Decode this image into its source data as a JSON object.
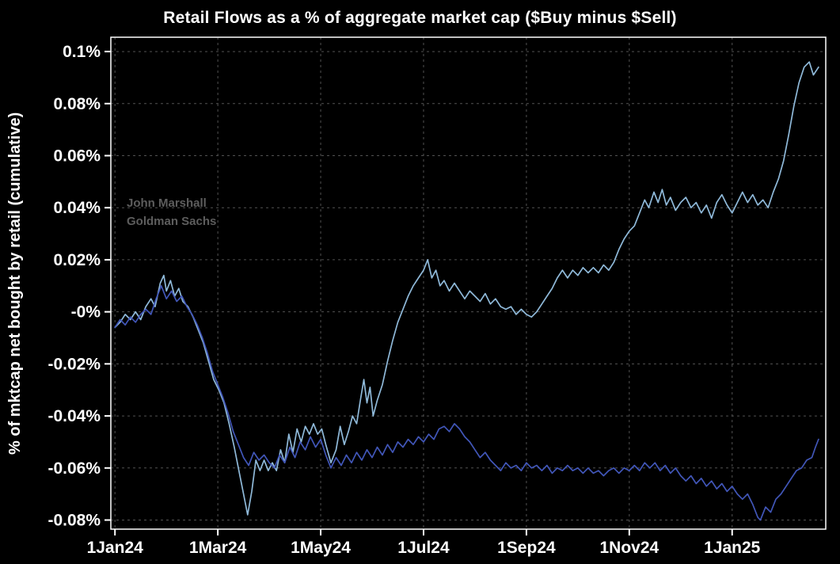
{
  "chart_data": {
    "type": "line",
    "title": "Retail Flows as a % of aggregate market cap ($Buy minus $Sell)",
    "xlabel": "",
    "ylabel": "% of mktcap net bought by retail (cumulative)",
    "watermark_line1": "John Marshall",
    "watermark_line2": "Goldman Sachs",
    "grid": true,
    "legend": "none",
    "x_unit": "months since 1Jan24",
    "y_unit": "percent of aggregate market cap",
    "xlim": [
      -0.08,
      13.82
    ],
    "ylim": [
      -0.0835,
      0.1055
    ],
    "x_ticks": [
      {
        "pos": 0,
        "label": "1Jan24"
      },
      {
        "pos": 2,
        "label": "1Mar24"
      },
      {
        "pos": 4,
        "label": "1May24"
      },
      {
        "pos": 6,
        "label": "1Jul24"
      },
      {
        "pos": 8,
        "label": "1Sep24"
      },
      {
        "pos": 10,
        "label": "1Nov24"
      },
      {
        "pos": 12,
        "label": "1Jan25"
      }
    ],
    "y_ticks": [
      {
        "pos": 0.1,
        "label": "0.1%"
      },
      {
        "pos": 0.08,
        "label": "0.08%"
      },
      {
        "pos": 0.06,
        "label": "0.06%"
      },
      {
        "pos": 0.04,
        "label": "0.04%"
      },
      {
        "pos": 0.02,
        "label": "0.02%"
      },
      {
        "pos": 0,
        "label": "-0%"
      },
      {
        "pos": -0.02,
        "label": "-0.02%"
      },
      {
        "pos": -0.04,
        "label": "-0.04%"
      },
      {
        "pos": -0.06,
        "label": "-0.06%"
      },
      {
        "pos": -0.08,
        "label": "-0.08%"
      }
    ],
    "colors": {
      "background": "#000000",
      "text": "#ffffff",
      "grid": "#525252",
      "frame": "#ffffff",
      "watermark": "#5d5d5d"
    },
    "series": [
      {
        "name": "light-blue-line",
        "color": "#8fb9d9",
        "points": [
          [
            0.0,
            -0.006
          ],
          [
            0.1,
            -0.004
          ],
          [
            0.2,
            -0.001
          ],
          [
            0.3,
            -0.003
          ],
          [
            0.4,
            0.0
          ],
          [
            0.5,
            -0.003
          ],
          [
            0.6,
            0.002
          ],
          [
            0.7,
            0.005
          ],
          [
            0.78,
            0.002
          ],
          [
            0.88,
            0.011
          ],
          [
            0.95,
            0.014
          ],
          [
            1.0,
            0.008
          ],
          [
            1.08,
            0.012
          ],
          [
            1.16,
            0.006
          ],
          [
            1.24,
            0.009
          ],
          [
            1.32,
            0.004
          ],
          [
            1.42,
            0.002
          ],
          [
            1.52,
            -0.002
          ],
          [
            1.62,
            -0.007
          ],
          [
            1.72,
            -0.012
          ],
          [
            1.82,
            -0.019
          ],
          [
            1.92,
            -0.026
          ],
          [
            2.02,
            -0.03
          ],
          [
            2.12,
            -0.035
          ],
          [
            2.22,
            -0.043
          ],
          [
            2.32,
            -0.052
          ],
          [
            2.42,
            -0.062
          ],
          [
            2.5,
            -0.07
          ],
          [
            2.58,
            -0.078
          ],
          [
            2.66,
            -0.069
          ],
          [
            2.74,
            -0.057
          ],
          [
            2.82,
            -0.061
          ],
          [
            2.9,
            -0.057
          ],
          [
            2.98,
            -0.061
          ],
          [
            3.06,
            -0.058
          ],
          [
            3.14,
            -0.061
          ],
          [
            3.22,
            -0.053
          ],
          [
            3.3,
            -0.058
          ],
          [
            3.38,
            -0.047
          ],
          [
            3.46,
            -0.054
          ],
          [
            3.54,
            -0.045
          ],
          [
            3.62,
            -0.05
          ],
          [
            3.7,
            -0.044
          ],
          [
            3.78,
            -0.047
          ],
          [
            3.86,
            -0.043
          ],
          [
            3.94,
            -0.047
          ],
          [
            4.02,
            -0.045
          ],
          [
            4.1,
            -0.051
          ],
          [
            4.2,
            -0.058
          ],
          [
            4.3,
            -0.053
          ],
          [
            4.38,
            -0.044
          ],
          [
            4.46,
            -0.051
          ],
          [
            4.54,
            -0.046
          ],
          [
            4.62,
            -0.04
          ],
          [
            4.7,
            -0.043
          ],
          [
            4.78,
            -0.033
          ],
          [
            4.84,
            -0.026
          ],
          [
            4.9,
            -0.035
          ],
          [
            4.96,
            -0.029
          ],
          [
            5.02,
            -0.04
          ],
          [
            5.1,
            -0.034
          ],
          [
            5.2,
            -0.028
          ],
          [
            5.3,
            -0.019
          ],
          [
            5.4,
            -0.011
          ],
          [
            5.5,
            -0.004
          ],
          [
            5.6,
            0.001
          ],
          [
            5.7,
            0.006
          ],
          [
            5.8,
            0.01
          ],
          [
            5.9,
            0.013
          ],
          [
            6.0,
            0.016
          ],
          [
            6.08,
            0.02
          ],
          [
            6.16,
            0.013
          ],
          [
            6.24,
            0.016
          ],
          [
            6.32,
            0.01
          ],
          [
            6.4,
            0.012
          ],
          [
            6.5,
            0.008
          ],
          [
            6.6,
            0.011
          ],
          [
            6.7,
            0.008
          ],
          [
            6.8,
            0.005
          ],
          [
            6.9,
            0.008
          ],
          [
            7.0,
            0.006
          ],
          [
            7.1,
            0.004
          ],
          [
            7.2,
            0.007
          ],
          [
            7.3,
            0.003
          ],
          [
            7.4,
            0.005
          ],
          [
            7.5,
            0.002
          ],
          [
            7.6,
            0.001
          ],
          [
            7.7,
            0.002
          ],
          [
            7.8,
            -0.001
          ],
          [
            7.9,
            0.001
          ],
          [
            8.0,
            -0.001
          ],
          [
            8.1,
            -0.002
          ],
          [
            8.2,
            0.0
          ],
          [
            8.3,
            0.003
          ],
          [
            8.4,
            0.006
          ],
          [
            8.5,
            0.009
          ],
          [
            8.6,
            0.013
          ],
          [
            8.7,
            0.016
          ],
          [
            8.8,
            0.013
          ],
          [
            8.9,
            0.016
          ],
          [
            9.0,
            0.014
          ],
          [
            9.1,
            0.017
          ],
          [
            9.2,
            0.015
          ],
          [
            9.3,
            0.017
          ],
          [
            9.4,
            0.015
          ],
          [
            9.5,
            0.018
          ],
          [
            9.6,
            0.016
          ],
          [
            9.7,
            0.019
          ],
          [
            9.8,
            0.024
          ],
          [
            9.9,
            0.028
          ],
          [
            10.0,
            0.031
          ],
          [
            10.1,
            0.033
          ],
          [
            10.2,
            0.038
          ],
          [
            10.3,
            0.043
          ],
          [
            10.38,
            0.04
          ],
          [
            10.48,
            0.046
          ],
          [
            10.56,
            0.042
          ],
          [
            10.64,
            0.047
          ],
          [
            10.72,
            0.041
          ],
          [
            10.8,
            0.044
          ],
          [
            10.9,
            0.039
          ],
          [
            11.0,
            0.042
          ],
          [
            11.1,
            0.044
          ],
          [
            11.2,
            0.04
          ],
          [
            11.3,
            0.042
          ],
          [
            11.4,
            0.038
          ],
          [
            11.5,
            0.041
          ],
          [
            11.6,
            0.036
          ],
          [
            11.7,
            0.042
          ],
          [
            11.8,
            0.045
          ],
          [
            11.9,
            0.041
          ],
          [
            12.0,
            0.038
          ],
          [
            12.1,
            0.042
          ],
          [
            12.2,
            0.046
          ],
          [
            12.3,
            0.042
          ],
          [
            12.4,
            0.045
          ],
          [
            12.5,
            0.041
          ],
          [
            12.6,
            0.043
          ],
          [
            12.7,
            0.04
          ],
          [
            12.8,
            0.046
          ],
          [
            12.9,
            0.051
          ],
          [
            13.0,
            0.058
          ],
          [
            13.1,
            0.068
          ],
          [
            13.2,
            0.079
          ],
          [
            13.3,
            0.088
          ],
          [
            13.4,
            0.094
          ],
          [
            13.5,
            0.096
          ],
          [
            13.58,
            0.091
          ],
          [
            13.68,
            0.094
          ]
        ]
      },
      {
        "name": "dark-blue-line",
        "color": "#4156b8",
        "points": [
          [
            0.0,
            -0.006
          ],
          [
            0.1,
            -0.003
          ],
          [
            0.2,
            -0.005
          ],
          [
            0.3,
            -0.002
          ],
          [
            0.4,
            -0.004
          ],
          [
            0.5,
            -0.001
          ],
          [
            0.6,
            0.001
          ],
          [
            0.7,
            -0.001
          ],
          [
            0.8,
            0.005
          ],
          [
            0.9,
            0.01
          ],
          [
            1.0,
            0.005
          ],
          [
            1.1,
            0.008
          ],
          [
            1.2,
            0.004
          ],
          [
            1.3,
            0.006
          ],
          [
            1.4,
            0.002
          ],
          [
            1.5,
            -0.001
          ],
          [
            1.6,
            -0.005
          ],
          [
            1.7,
            -0.01
          ],
          [
            1.8,
            -0.016
          ],
          [
            1.9,
            -0.023
          ],
          [
            2.0,
            -0.028
          ],
          [
            2.1,
            -0.033
          ],
          [
            2.2,
            -0.039
          ],
          [
            2.3,
            -0.046
          ],
          [
            2.4,
            -0.051
          ],
          [
            2.5,
            -0.056
          ],
          [
            2.6,
            -0.059
          ],
          [
            2.7,
            -0.054
          ],
          [
            2.8,
            -0.057
          ],
          [
            2.9,
            -0.055
          ],
          [
            3.0,
            -0.058
          ],
          [
            3.1,
            -0.06
          ],
          [
            3.2,
            -0.055
          ],
          [
            3.3,
            -0.058
          ],
          [
            3.4,
            -0.052
          ],
          [
            3.5,
            -0.056
          ],
          [
            3.6,
            -0.05
          ],
          [
            3.7,
            -0.053
          ],
          [
            3.8,
            -0.048
          ],
          [
            3.9,
            -0.052
          ],
          [
            4.0,
            -0.049
          ],
          [
            4.1,
            -0.055
          ],
          [
            4.2,
            -0.06
          ],
          [
            4.3,
            -0.056
          ],
          [
            4.4,
            -0.059
          ],
          [
            4.5,
            -0.055
          ],
          [
            4.6,
            -0.058
          ],
          [
            4.7,
            -0.054
          ],
          [
            4.8,
            -0.057
          ],
          [
            4.9,
            -0.053
          ],
          [
            5.0,
            -0.056
          ],
          [
            5.1,
            -0.052
          ],
          [
            5.2,
            -0.055
          ],
          [
            5.3,
            -0.051
          ],
          [
            5.4,
            -0.054
          ],
          [
            5.5,
            -0.05
          ],
          [
            5.6,
            -0.052
          ],
          [
            5.7,
            -0.049
          ],
          [
            5.8,
            -0.051
          ],
          [
            5.9,
            -0.048
          ],
          [
            6.0,
            -0.05
          ],
          [
            6.1,
            -0.047
          ],
          [
            6.2,
            -0.049
          ],
          [
            6.3,
            -0.045
          ],
          [
            6.4,
            -0.044
          ],
          [
            6.5,
            -0.046
          ],
          [
            6.6,
            -0.043
          ],
          [
            6.7,
            -0.045
          ],
          [
            6.8,
            -0.048
          ],
          [
            6.9,
            -0.05
          ],
          [
            7.0,
            -0.053
          ],
          [
            7.1,
            -0.056
          ],
          [
            7.2,
            -0.054
          ],
          [
            7.3,
            -0.057
          ],
          [
            7.4,
            -0.059
          ],
          [
            7.5,
            -0.061
          ],
          [
            7.6,
            -0.058
          ],
          [
            7.7,
            -0.06
          ],
          [
            7.8,
            -0.059
          ],
          [
            7.9,
            -0.061
          ],
          [
            8.0,
            -0.058
          ],
          [
            8.1,
            -0.06
          ],
          [
            8.2,
            -0.059
          ],
          [
            8.3,
            -0.061
          ],
          [
            8.4,
            -0.059
          ],
          [
            8.5,
            -0.062
          ],
          [
            8.6,
            -0.06
          ],
          [
            8.7,
            -0.061
          ],
          [
            8.8,
            -0.059
          ],
          [
            8.9,
            -0.061
          ],
          [
            9.0,
            -0.06
          ],
          [
            9.1,
            -0.062
          ],
          [
            9.2,
            -0.06
          ],
          [
            9.3,
            -0.062
          ],
          [
            9.4,
            -0.061
          ],
          [
            9.5,
            -0.063
          ],
          [
            9.6,
            -0.061
          ],
          [
            9.7,
            -0.06
          ],
          [
            9.8,
            -0.062
          ],
          [
            9.9,
            -0.06
          ],
          [
            10.0,
            -0.061
          ],
          [
            10.1,
            -0.059
          ],
          [
            10.2,
            -0.061
          ],
          [
            10.3,
            -0.058
          ],
          [
            10.4,
            -0.06
          ],
          [
            10.5,
            -0.058
          ],
          [
            10.6,
            -0.061
          ],
          [
            10.7,
            -0.059
          ],
          [
            10.8,
            -0.062
          ],
          [
            10.9,
            -0.06
          ],
          [
            11.0,
            -0.063
          ],
          [
            11.1,
            -0.065
          ],
          [
            11.2,
            -0.063
          ],
          [
            11.3,
            -0.066
          ],
          [
            11.4,
            -0.064
          ],
          [
            11.5,
            -0.067
          ],
          [
            11.6,
            -0.065
          ],
          [
            11.7,
            -0.068
          ],
          [
            11.8,
            -0.066
          ],
          [
            11.9,
            -0.069
          ],
          [
            12.0,
            -0.067
          ],
          [
            12.1,
            -0.07
          ],
          [
            12.2,
            -0.072
          ],
          [
            12.3,
            -0.07
          ],
          [
            12.4,
            -0.074
          ],
          [
            12.5,
            -0.079
          ],
          [
            12.55,
            -0.08
          ],
          [
            12.65,
            -0.075
          ],
          [
            12.75,
            -0.077
          ],
          [
            12.85,
            -0.072
          ],
          [
            12.95,
            -0.07
          ],
          [
            13.05,
            -0.067
          ],
          [
            13.15,
            -0.064
          ],
          [
            13.25,
            -0.061
          ],
          [
            13.35,
            -0.06
          ],
          [
            13.45,
            -0.057
          ],
          [
            13.55,
            -0.056
          ],
          [
            13.62,
            -0.052
          ],
          [
            13.68,
            -0.049
          ]
        ]
      }
    ]
  }
}
